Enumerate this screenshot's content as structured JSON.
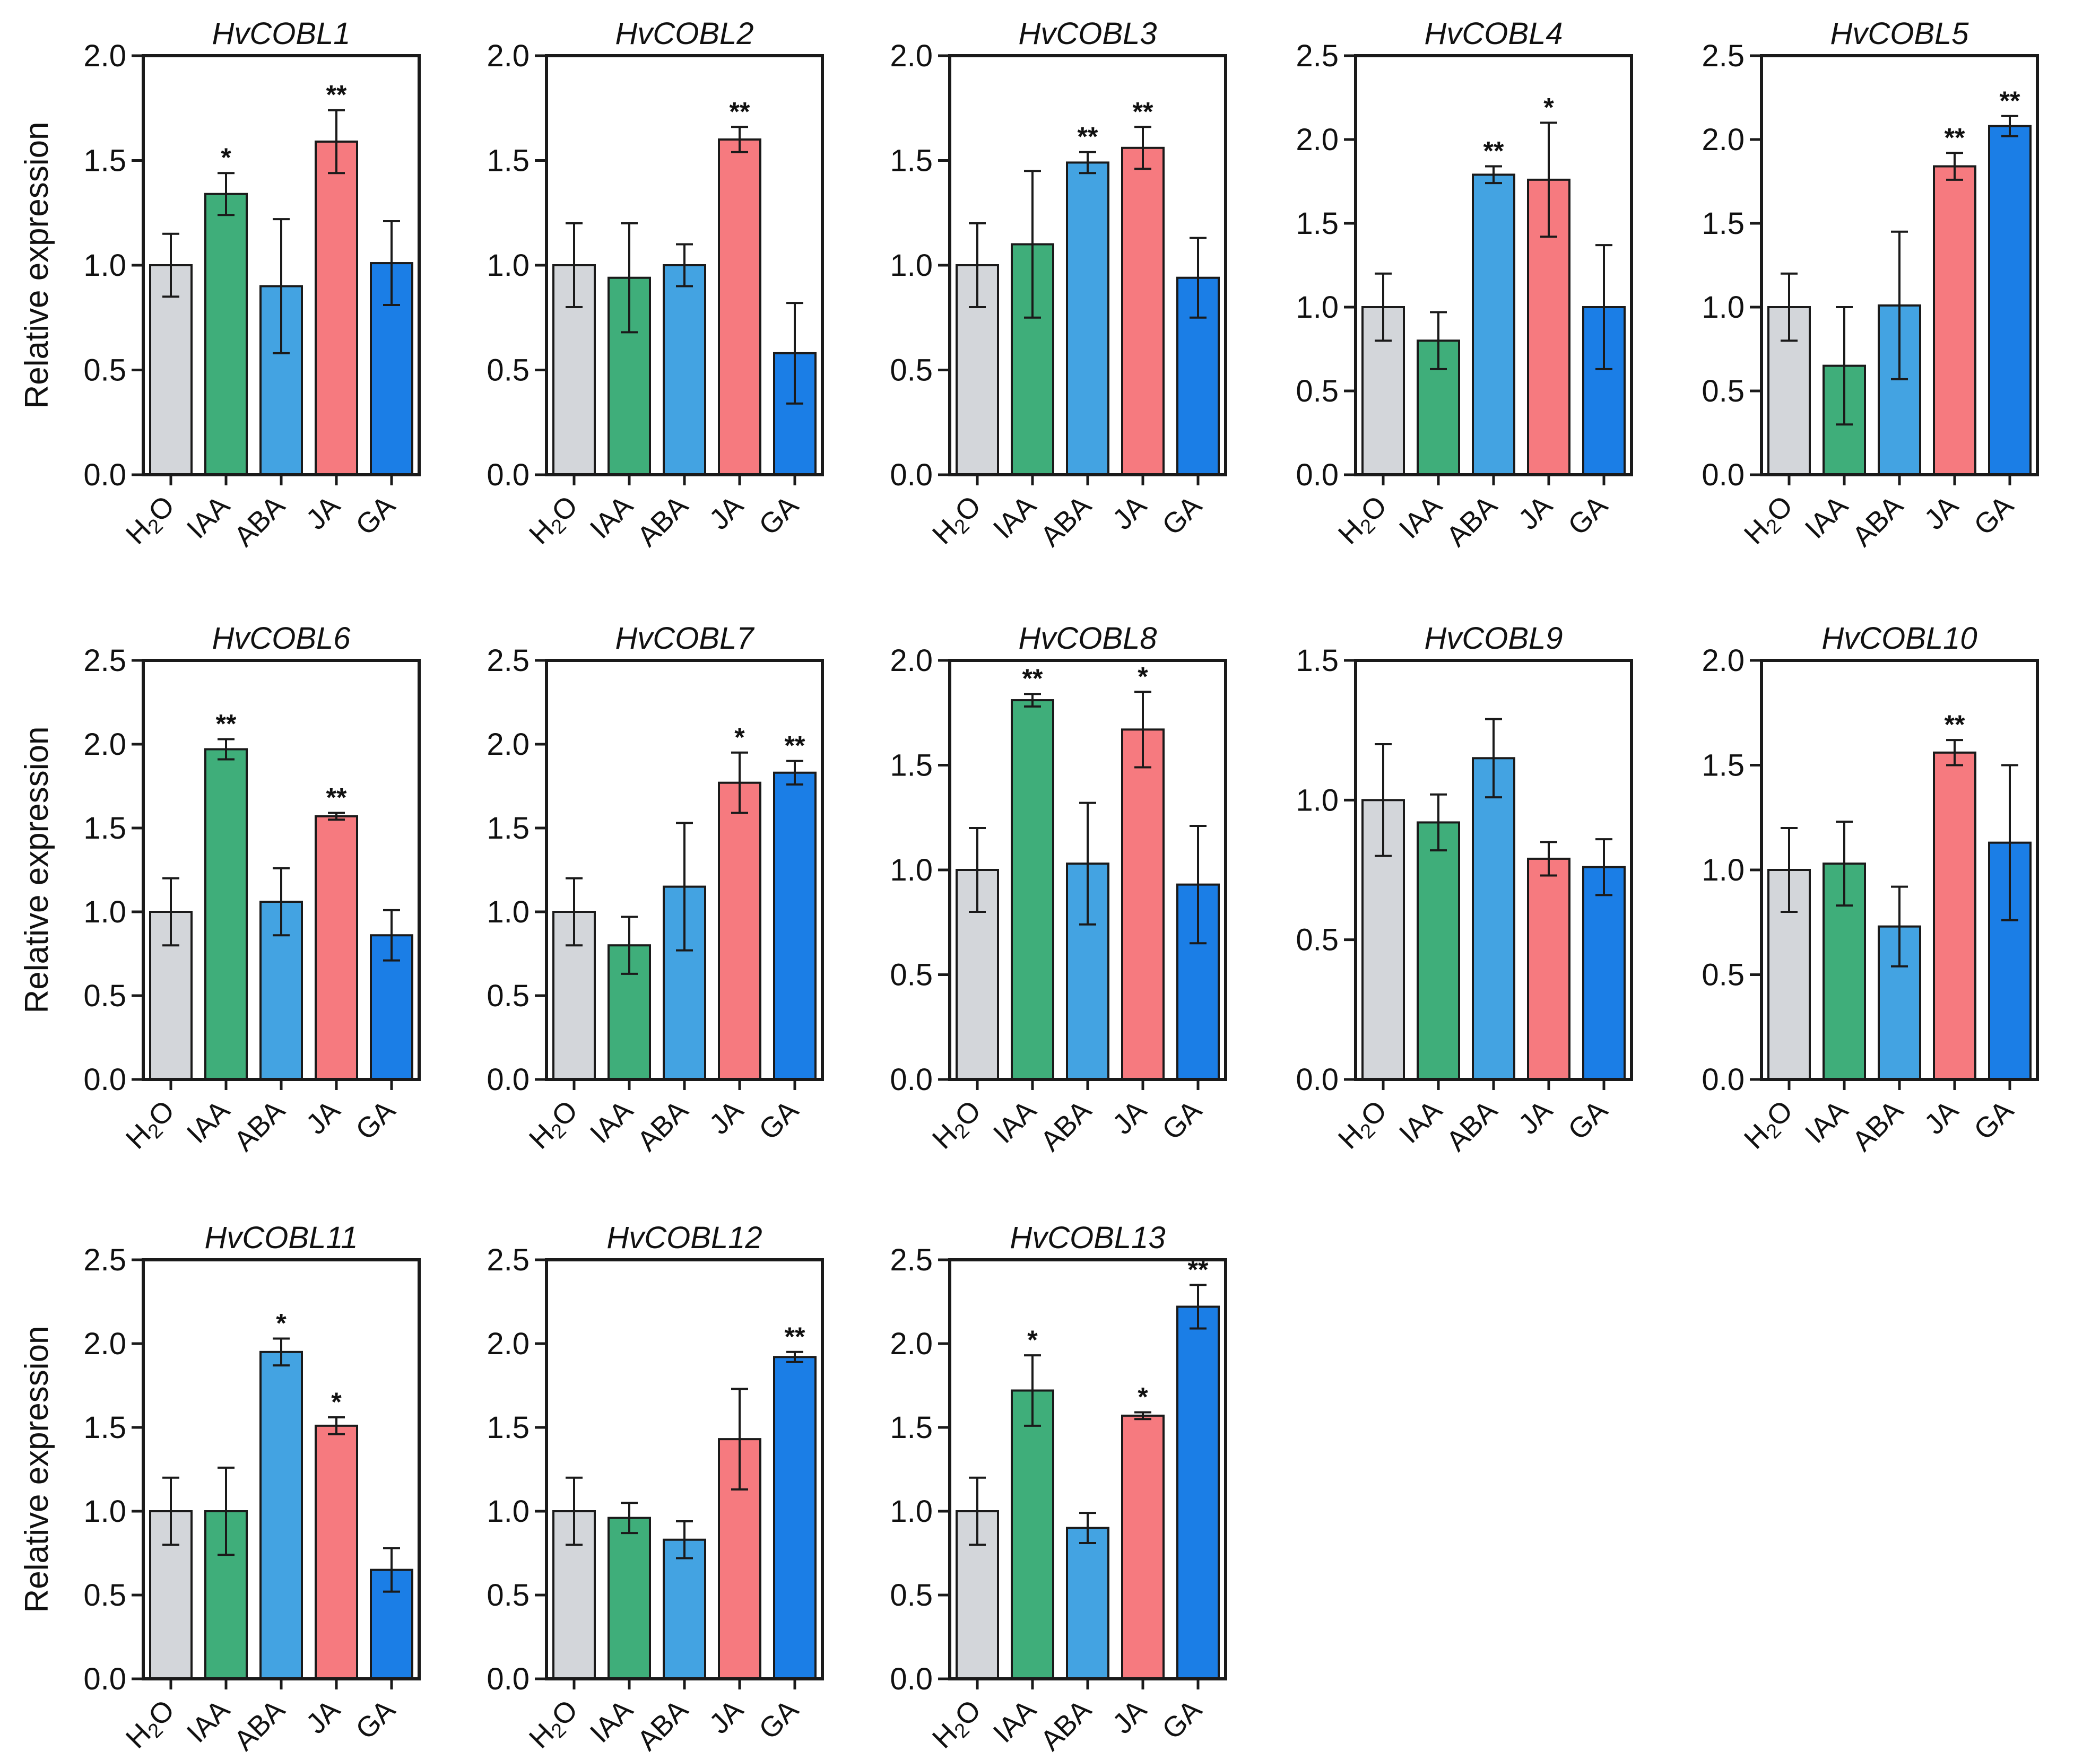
{
  "figure": {
    "ylabel": "Relative expression"
  },
  "colors": {
    "H2O": "#d3d6da",
    "IAA": "#3fae7a",
    "ABA": "#43a3e2",
    "JA": "#f67a7f",
    "GA": "#1b7ee6",
    "edge": "#1a1a1a"
  },
  "chart_data": [
    {
      "type": "bar",
      "title": "HvCOBL1",
      "categories": [
        "H2O",
        "IAA",
        "ABA",
        "JA",
        "GA"
      ],
      "values": [
        1.0,
        1.34,
        0.9,
        1.59,
        1.01
      ],
      "errors": [
        0.15,
        0.1,
        0.32,
        0.15,
        0.2
      ],
      "significance": [
        "",
        "*",
        "",
        "**",
        ""
      ],
      "ylim": [
        0,
        2.0
      ],
      "yticks": [
        "0.0",
        "0.5",
        "1.0",
        "1.5",
        "2.0"
      ],
      "ylabel": "Relative expression"
    },
    {
      "type": "bar",
      "title": "HvCOBL2",
      "categories": [
        "H2O",
        "IAA",
        "ABA",
        "JA",
        "GA"
      ],
      "values": [
        1.0,
        0.94,
        1.0,
        1.6,
        0.58
      ],
      "errors": [
        0.2,
        0.26,
        0.1,
        0.06,
        0.24
      ],
      "significance": [
        "",
        "",
        "",
        "**",
        ""
      ],
      "ylim": [
        0,
        2.0
      ],
      "yticks": [
        "0.0",
        "0.5",
        "1.0",
        "1.5",
        "2.0"
      ],
      "ylabel": ""
    },
    {
      "type": "bar",
      "title": "HvCOBL3",
      "categories": [
        "H2O",
        "IAA",
        "ABA",
        "JA",
        "GA"
      ],
      "values": [
        1.0,
        1.1,
        1.49,
        1.56,
        0.94
      ],
      "errors": [
        0.2,
        0.35,
        0.05,
        0.1,
        0.19
      ],
      "significance": [
        "",
        "",
        "**",
        "**",
        ""
      ],
      "ylim": [
        0,
        2.0
      ],
      "yticks": [
        "0.0",
        "0.5",
        "1.0",
        "1.5",
        "2.0"
      ],
      "ylabel": ""
    },
    {
      "type": "bar",
      "title": "HvCOBL4",
      "categories": [
        "H2O",
        "IAA",
        "ABA",
        "JA",
        "GA"
      ],
      "values": [
        1.0,
        0.8,
        1.79,
        1.76,
        1.0
      ],
      "errors": [
        0.2,
        0.17,
        0.05,
        0.34,
        0.37
      ],
      "significance": [
        "",
        "",
        "**",
        "*",
        ""
      ],
      "ylim": [
        0,
        2.5
      ],
      "yticks": [
        "0.0",
        "0.5",
        "1.0",
        "1.5",
        "2.0",
        "2.5"
      ],
      "ylabel": ""
    },
    {
      "type": "bar",
      "title": "HvCOBL5",
      "categories": [
        "H2O",
        "IAA",
        "ABA",
        "JA",
        "GA"
      ],
      "values": [
        1.0,
        0.65,
        1.01,
        1.84,
        2.08
      ],
      "errors": [
        0.2,
        0.35,
        0.44,
        0.08,
        0.06
      ],
      "significance": [
        "",
        "",
        "",
        "**",
        "**"
      ],
      "ylim": [
        0,
        2.5
      ],
      "yticks": [
        "0.0",
        "0.5",
        "1.0",
        "1.5",
        "2.0",
        "2.5"
      ],
      "ylabel": ""
    },
    {
      "type": "bar",
      "title": "HvCOBL6",
      "categories": [
        "H2O",
        "IAA",
        "ABA",
        "JA",
        "GA"
      ],
      "values": [
        1.0,
        1.97,
        1.06,
        1.57,
        0.86
      ],
      "errors": [
        0.2,
        0.06,
        0.2,
        0.02,
        0.15
      ],
      "significance": [
        "",
        "**",
        "",
        "**",
        ""
      ],
      "ylim": [
        0,
        2.5
      ],
      "yticks": [
        "0.0",
        "0.5",
        "1.0",
        "1.5",
        "2.0",
        "2.5"
      ],
      "ylabel": "Relative expression"
    },
    {
      "type": "bar",
      "title": "HvCOBL7",
      "categories": [
        "H2O",
        "IAA",
        "ABA",
        "JA",
        "GA"
      ],
      "values": [
        1.0,
        0.8,
        1.15,
        1.77,
        1.83
      ],
      "errors": [
        0.2,
        0.17,
        0.38,
        0.18,
        0.07
      ],
      "significance": [
        "",
        "",
        "",
        "*",
        "**"
      ],
      "ylim": [
        0,
        2.5
      ],
      "yticks": [
        "0.0",
        "0.5",
        "1.0",
        "1.5",
        "2.0",
        "2.5"
      ],
      "ylabel": ""
    },
    {
      "type": "bar",
      "title": "HvCOBL8",
      "categories": [
        "H2O",
        "IAA",
        "ABA",
        "JA",
        "GA"
      ],
      "values": [
        1.0,
        1.81,
        1.03,
        1.67,
        0.93
      ],
      "errors": [
        0.2,
        0.03,
        0.29,
        0.18,
        0.28
      ],
      "significance": [
        "",
        "**",
        "",
        "*",
        ""
      ],
      "ylim": [
        0,
        2.0
      ],
      "yticks": [
        "0.0",
        "0.5",
        "1.0",
        "1.5",
        "2.0"
      ],
      "ylabel": ""
    },
    {
      "type": "bar",
      "title": "HvCOBL9",
      "categories": [
        "H2O",
        "IAA",
        "ABA",
        "JA",
        "GA"
      ],
      "values": [
        1.0,
        0.92,
        1.15,
        0.79,
        0.76
      ],
      "errors": [
        0.2,
        0.1,
        0.14,
        0.06,
        0.1
      ],
      "significance": [
        "",
        "",
        "",
        "",
        ""
      ],
      "ylim": [
        0,
        1.5
      ],
      "yticks": [
        "0.0",
        "0.5",
        "1.0",
        "1.5"
      ],
      "ylabel": ""
    },
    {
      "type": "bar",
      "title": "HvCOBL10",
      "categories": [
        "H2O",
        "IAA",
        "ABA",
        "JA",
        "GA"
      ],
      "values": [
        1.0,
        1.03,
        0.73,
        1.56,
        1.13
      ],
      "errors": [
        0.2,
        0.2,
        0.19,
        0.06,
        0.37
      ],
      "significance": [
        "",
        "",
        "",
        "**",
        ""
      ],
      "ylim": [
        0,
        2.0
      ],
      "yticks": [
        "0.0",
        "0.5",
        "1.0",
        "1.5",
        "2.0"
      ],
      "ylabel": ""
    },
    {
      "type": "bar",
      "title": "HvCOBL11",
      "categories": [
        "H2O",
        "IAA",
        "ABA",
        "JA",
        "GA"
      ],
      "values": [
        1.0,
        1.0,
        1.95,
        1.51,
        0.65
      ],
      "errors": [
        0.2,
        0.26,
        0.08,
        0.05,
        0.13
      ],
      "significance": [
        "",
        "",
        "*",
        "*",
        ""
      ],
      "ylim": [
        0,
        2.5
      ],
      "yticks": [
        "0.0",
        "0.5",
        "1.0",
        "1.5",
        "2.0",
        "2.5"
      ],
      "ylabel": "Relative expression"
    },
    {
      "type": "bar",
      "title": "HvCOBL12",
      "categories": [
        "H2O",
        "IAA",
        "ABA",
        "JA",
        "GA"
      ],
      "values": [
        1.0,
        0.96,
        0.83,
        1.43,
        1.92
      ],
      "errors": [
        0.2,
        0.09,
        0.11,
        0.3,
        0.03
      ],
      "significance": [
        "",
        "",
        "",
        "",
        "**"
      ],
      "ylim": [
        0,
        2.5
      ],
      "yticks": [
        "0.0",
        "0.5",
        "1.0",
        "1.5",
        "2.0",
        "2.5"
      ],
      "ylabel": ""
    },
    {
      "type": "bar",
      "title": "HvCOBL13",
      "categories": [
        "H2O",
        "IAA",
        "ABA",
        "JA",
        "GA"
      ],
      "values": [
        1.0,
        1.72,
        0.9,
        1.57,
        2.22
      ],
      "errors": [
        0.2,
        0.21,
        0.09,
        0.02,
        0.13
      ],
      "significance": [
        "",
        "*",
        "",
        "*",
        "**"
      ],
      "ylim": [
        0,
        2.5
      ],
      "yticks": [
        "0.0",
        "0.5",
        "1.0",
        "1.5",
        "2.0",
        "2.5"
      ],
      "ylabel": ""
    }
  ]
}
